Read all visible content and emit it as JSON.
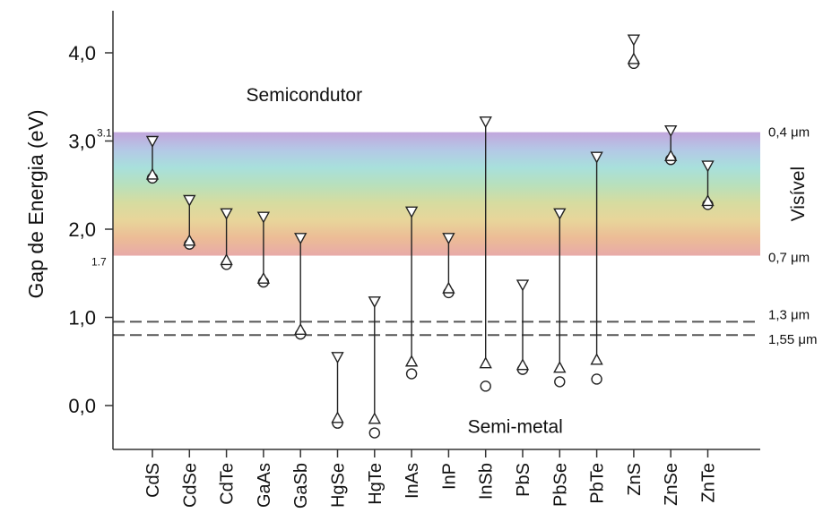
{
  "chart_data": {
    "type": "scatter",
    "ylabel": "Gap de Energia (eV)",
    "ylim": [
      -0.5,
      4.45
    ],
    "yticks": [
      {
        "value": 0.0,
        "label": "0,0"
      },
      {
        "value": 1.0,
        "label": "1,0"
      },
      {
        "value": 2.0,
        "label": "2,0"
      },
      {
        "value": 3.0,
        "label": "3,0"
      },
      {
        "value": 4.0,
        "label": "4,0"
      }
    ],
    "band_edge_labels": [
      {
        "value": 3.1,
        "label": "3.1"
      },
      {
        "value": 1.7,
        "label": "1.7"
      }
    ],
    "categories": [
      "CdS",
      "CdSe",
      "CdTe",
      "GaAs",
      "GaSb",
      "HgSe",
      "HgTe",
      "InAs",
      "InP",
      "InSb",
      "PbS",
      "PbSe",
      "PbTe",
      "ZnS",
      "ZnSe",
      "ZnTe"
    ],
    "series": [
      {
        "marker": "down-triangle",
        "values": [
          3.0,
          2.33,
          2.18,
          2.14,
          1.9,
          0.55,
          1.18,
          2.2,
          1.9,
          3.22,
          1.37,
          2.18,
          2.82,
          4.15,
          3.12,
          2.72
        ]
      },
      {
        "marker": "up-triangle",
        "values": [
          2.62,
          1.87,
          1.65,
          1.44,
          0.86,
          -0.14,
          -0.15,
          0.5,
          1.33,
          0.48,
          0.46,
          0.43,
          0.52,
          3.93,
          2.83,
          2.32
        ]
      },
      {
        "marker": "circle",
        "values": [
          2.58,
          1.83,
          1.6,
          1.4,
          0.81,
          -0.2,
          -0.31,
          0.36,
          1.28,
          0.22,
          0.41,
          0.27,
          0.3,
          3.88,
          2.79,
          2.28
        ]
      }
    ],
    "visible_band": {
      "min": 1.7,
      "max": 3.1,
      "colors": [
        "#e8aaa8",
        "#ecbc96",
        "#e8d59a",
        "#d6dca0",
        "#b8e0bc",
        "#a8e0dc",
        "#b4c8e6",
        "#c2a6dc"
      ]
    },
    "dashed_lines": [
      0.95,
      0.8
    ],
    "right_labels": [
      {
        "value": 3.1,
        "label": "0,4 μm"
      },
      {
        "value": 1.68,
        "label": "0,7 μm"
      },
      {
        "value": 1.03,
        "label": "1,3 μm"
      },
      {
        "value": 0.75,
        "label": "1,55 μm"
      }
    ],
    "annotations": [
      {
        "text": "Semicondutor",
        "x_category": "GaSb",
        "x_offset": 0.1,
        "y": 3.45
      },
      {
        "text": "Semi-metal",
        "x_category": "PbS",
        "x_offset": -0.2,
        "y": -0.31
      },
      {
        "text": "Visível",
        "side": "right",
        "y": 2.4
      }
    ]
  }
}
